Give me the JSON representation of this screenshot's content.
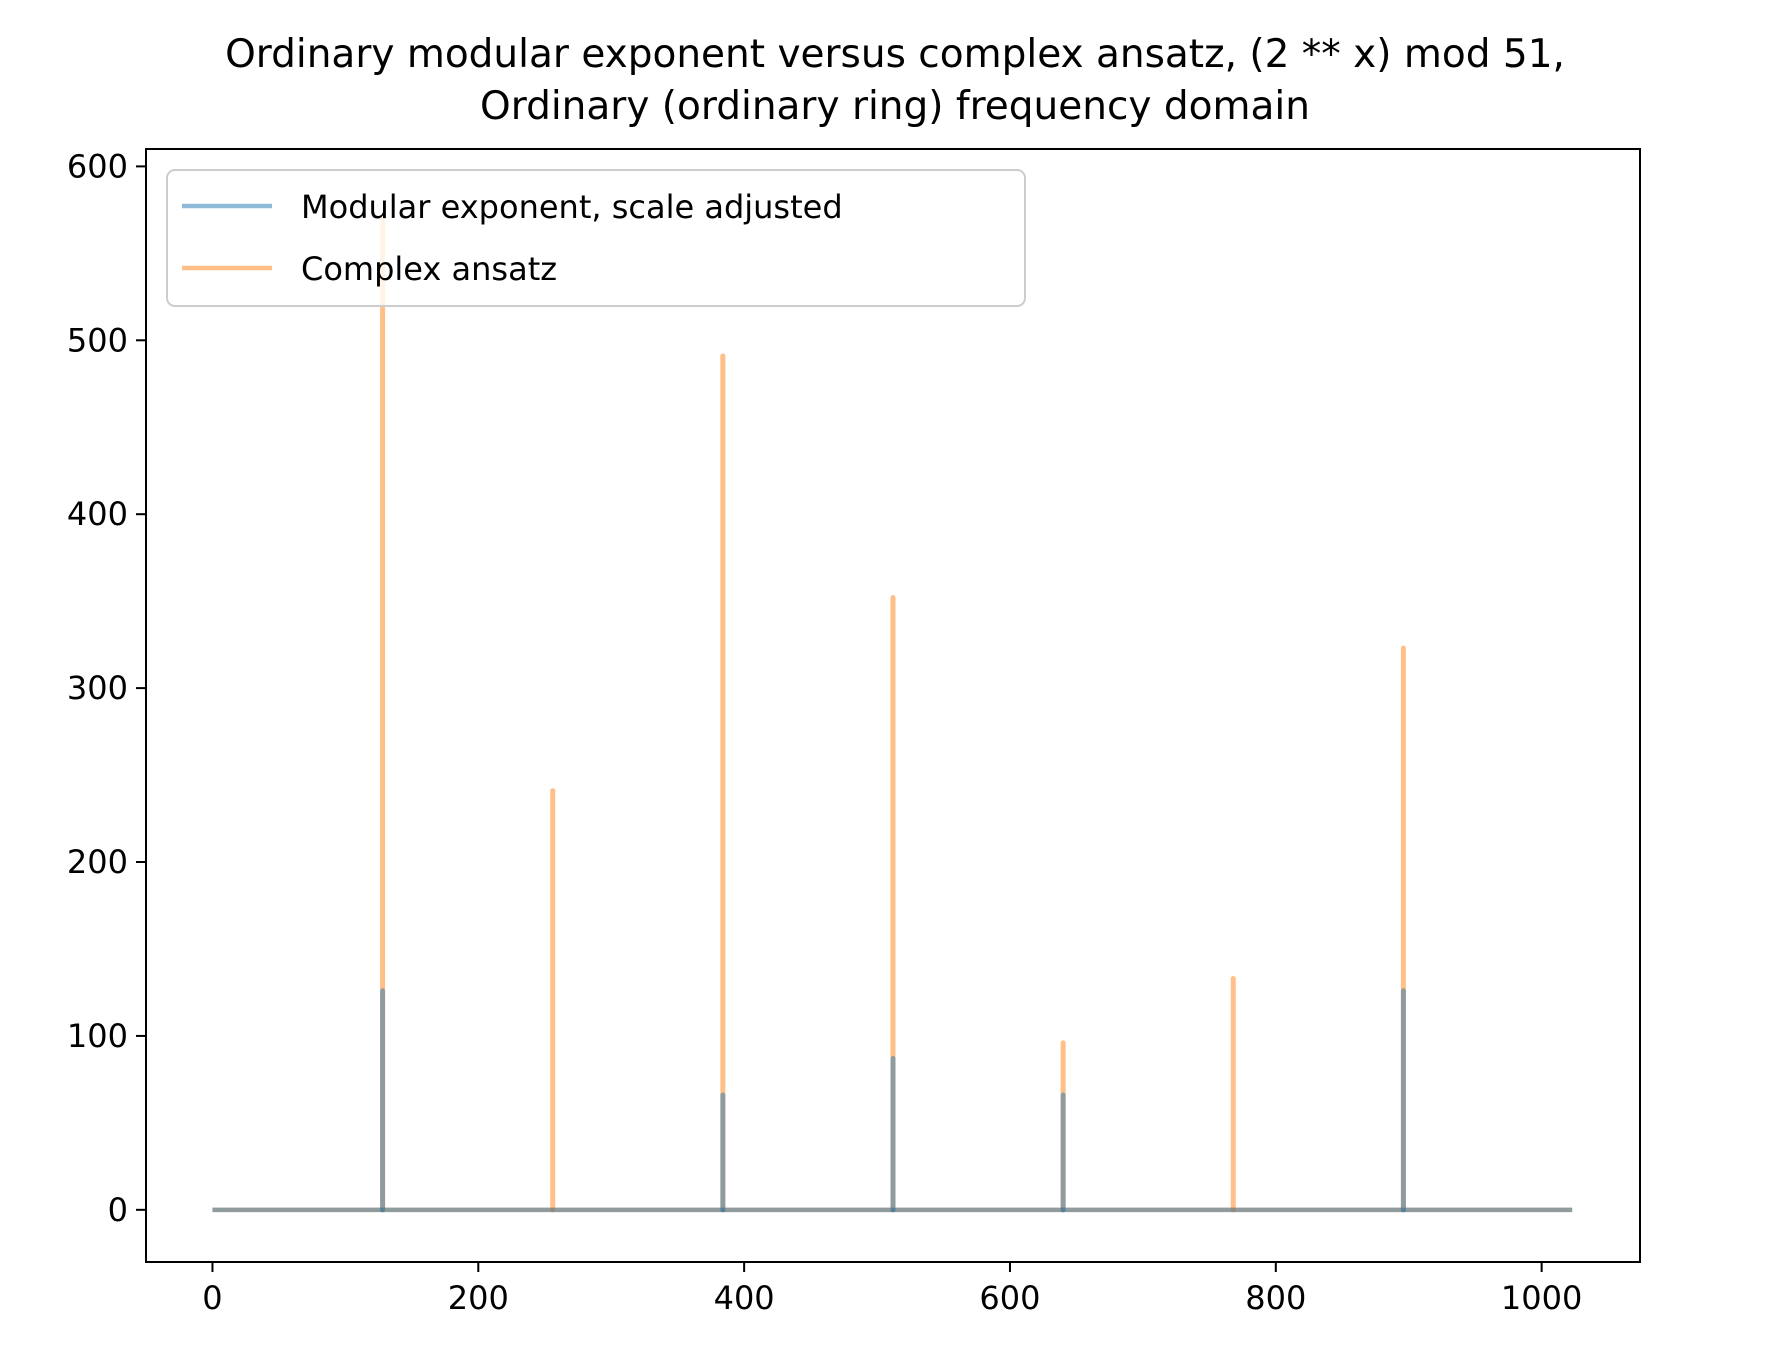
{
  "chart_data": {
    "type": "line",
    "title": "Ordinary modular exponent versus complex ansatz, (2 ** x) mod 51,",
    "subtitle": "Ordinary (ordinary ring) frequency domain",
    "xlabel": "",
    "ylabel": "",
    "xlim": [
      -50,
      1074
    ],
    "ylim": [
      -30,
      610
    ],
    "x_ticks": [
      0,
      200,
      400,
      600,
      800,
      1000
    ],
    "y_ticks": [
      0,
      100,
      200,
      300,
      400,
      500,
      600
    ],
    "x_tick_labels": [
      "0",
      "200",
      "400",
      "600",
      "800",
      "1000"
    ],
    "y_tick_labels": [
      "0",
      "100",
      "200",
      "300",
      "400",
      "500",
      "600"
    ],
    "x_range": [
      0,
      1023
    ],
    "grid": false,
    "legend_position": "upper-left",
    "colors": {
      "modular": "#1f77b4",
      "complex": "#ff7f0e"
    },
    "series": [
      {
        "name": "Modular exponent, scale adjusted",
        "color": "#1f77b4",
        "points": [
          {
            "x": 128,
            "y": 126
          },
          {
            "x": 384,
            "y": 66
          },
          {
            "x": 512,
            "y": 87
          },
          {
            "x": 640,
            "y": 66
          },
          {
            "x": 896,
            "y": 126
          }
        ]
      },
      {
        "name": "Complex ansatz",
        "color": "#ff7f0e",
        "points": [
          {
            "x": 128,
            "y": 570
          },
          {
            "x": 256,
            "y": 241
          },
          {
            "x": 384,
            "y": 491
          },
          {
            "x": 512,
            "y": 352
          },
          {
            "x": 640,
            "y": 96
          },
          {
            "x": 768,
            "y": 133
          },
          {
            "x": 896,
            "y": 323
          }
        ]
      }
    ]
  }
}
